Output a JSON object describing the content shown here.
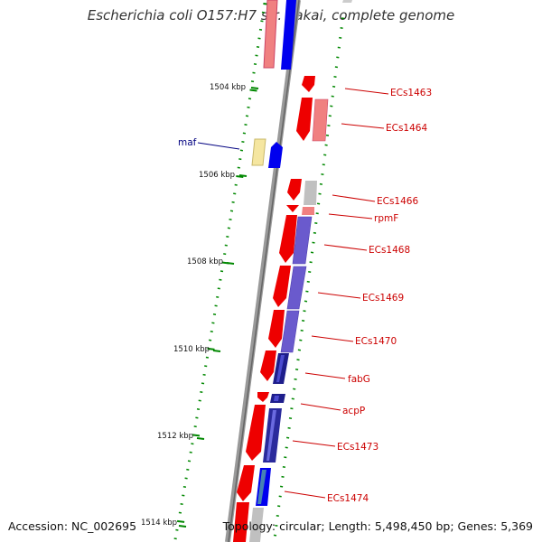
{
  "title": "Escherichia coli O157:H7 str. Sakai, complete genome",
  "footer": {
    "accession": "Accession: NC_002695",
    "topology": "Topology: circular; Length: 5,498,450 bp; Genes: 5,369"
  },
  "scale_labels": [
    "1504 kbp",
    "1506 kbp",
    "1508 kbp",
    "1510 kbp",
    "1512 kbp",
    "1514 kbp"
  ],
  "gene_labels": [
    {
      "name": "maf",
      "color": "#000080"
    },
    {
      "name": "ECs1463",
      "color": "#cc0000"
    },
    {
      "name": "ECs1464",
      "color": "#cc0000"
    },
    {
      "name": "ECs1466",
      "color": "#cc0000"
    },
    {
      "name": "rpmF",
      "color": "#cc0000"
    },
    {
      "name": "ECs1468",
      "color": "#cc0000"
    },
    {
      "name": "ECs1469",
      "color": "#cc0000"
    },
    {
      "name": "ECs1470",
      "color": "#cc0000"
    },
    {
      "name": "fabG",
      "color": "#cc0000"
    },
    {
      "name": "acpP",
      "color": "#cc0000"
    },
    {
      "name": "ECs1473",
      "color": "#cc0000"
    },
    {
      "name": "ECs1474",
      "color": "#cc0000"
    }
  ],
  "colors": {
    "forward_cds": "#ee0000",
    "reverse_cds": "#0000ee",
    "backbone": "#888888",
    "tick": "#008800",
    "gc_positive": "#6a5acd",
    "gc_negative": "#f08080"
  }
}
